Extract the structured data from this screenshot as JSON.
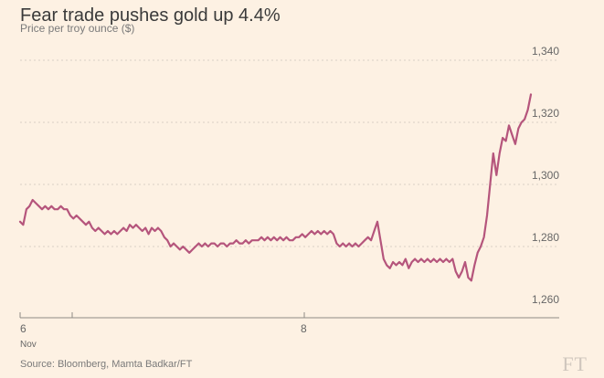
{
  "chart_data": {
    "type": "line",
    "title": "Fear trade pushes gold up 4.4%",
    "subtitle": "Price per troy ounce ($)",
    "source": "Source: Bloomberg, Mamta Badkar/FT",
    "logo": "FT",
    "ylim": [
      1260,
      1340
    ],
    "y_ticks": [
      1260,
      1280,
      1300,
      1320,
      1340
    ],
    "y_tick_labels": [
      "1,260",
      "1,280",
      "1,300",
      "1,320",
      "1,340"
    ],
    "x_ticks": [
      {
        "label": "6",
        "sublabel": "Nov"
      },
      {
        "label": "8",
        "sublabel": ""
      }
    ],
    "grid": true,
    "line_color": "#b5557c",
    "series": [
      {
        "values": [
          1288,
          1287,
          1292,
          1293,
          1295,
          1294,
          1293,
          1292,
          1293,
          1292,
          1293,
          1292,
          1292,
          1293,
          1292,
          1292,
          1290,
          1289,
          1290,
          1289,
          1288,
          1287,
          1288,
          1286,
          1285,
          1286,
          1285,
          1284,
          1285,
          1284,
          1285,
          1284,
          1285,
          1286,
          1285,
          1287,
          1286,
          1287,
          1286,
          1285,
          1286,
          1284,
          1286,
          1285,
          1286,
          1285,
          1283,
          1282,
          1280,
          1281,
          1280,
          1279,
          1280,
          1279,
          1278,
          1279,
          1280,
          1281,
          1280,
          1281,
          1280,
          1281,
          1281,
          1280,
          1281,
          1281,
          1280,
          1281,
          1281,
          1282,
          1281,
          1281,
          1282,
          1281,
          1282,
          1282,
          1282,
          1283,
          1282,
          1283,
          1282,
          1283,
          1282,
          1283,
          1282,
          1283,
          1282,
          1282,
          1283,
          1283,
          1284,
          1283,
          1284,
          1285,
          1284,
          1285,
          1284,
          1285,
          1284,
          1285,
          1284,
          1281,
          1280,
          1281,
          1280,
          1281,
          1280,
          1281,
          1280,
          1281,
          1282,
          1283,
          1282,
          1285,
          1288,
          1282,
          1276,
          1274,
          1273,
          1275,
          1274,
          1275,
          1274,
          1276,
          1273,
          1275,
          1276,
          1275,
          1276,
          1275,
          1276,
          1275,
          1276,
          1275,
          1276,
          1275,
          1276,
          1275,
          1276,
          1272,
          1270,
          1272,
          1275,
          1270,
          1269,
          1274,
          1278,
          1280,
          1283,
          1290,
          1300,
          1310,
          1303,
          1310,
          1315,
          1314,
          1319,
          1316,
          1313,
          1318,
          1320,
          1321,
          1324,
          1329
        ]
      }
    ]
  }
}
